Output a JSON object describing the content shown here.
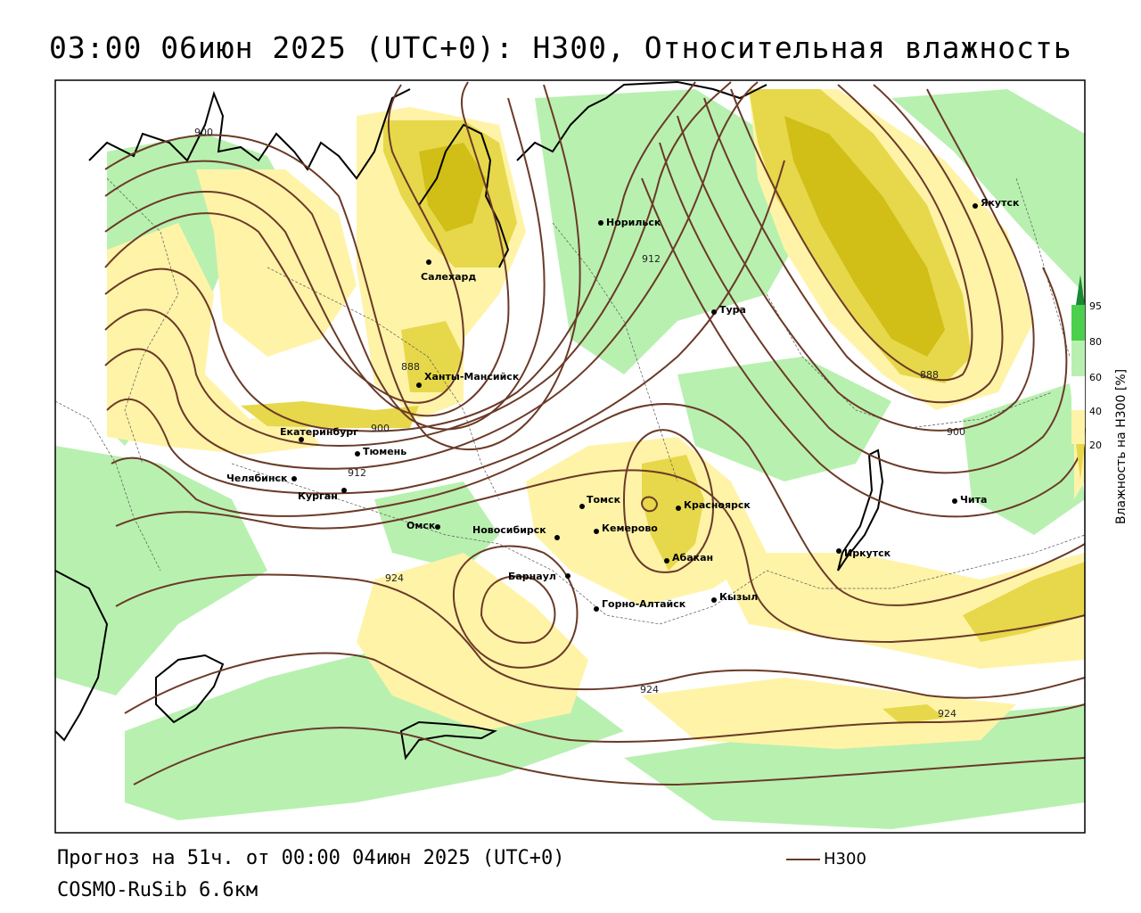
{
  "title": "03:00 06июн 2025 (UTC+0): H300, Относительная влажность",
  "footer": {
    "forecast": "Прогноз на 51ч. от 00:00 04июн 2025 (UTC+0)",
    "model": "COSMO-RuSib 6.6км"
  },
  "legend": {
    "line_label": "H300",
    "line_color": "#6b3a28"
  },
  "colorbar": {
    "title": "Влажность на H300 [%]",
    "ticks": [
      "95",
      "80",
      "60",
      "40",
      "20"
    ],
    "colors": {
      "dark_green": "#1a8a32",
      "green": "#4ccf4c",
      "light_green": "#b8f0b0",
      "white": "#ffffff",
      "light_yellow": "#fff3a8",
      "yellow": "#e6d84a",
      "olive": "#c8b400"
    }
  },
  "cities": [
    {
      "name": "Салехард"
    },
    {
      "name": "Норильск"
    },
    {
      "name": "Якутск"
    },
    {
      "name": "Тура"
    },
    {
      "name": "Ханты-Мансийск"
    },
    {
      "name": "Екатеринбург"
    },
    {
      "name": "Тюмень"
    },
    {
      "name": "Челябинск"
    },
    {
      "name": "Курган"
    },
    {
      "name": "Омск"
    },
    {
      "name": "Новосибирск"
    },
    {
      "name": "Томск"
    },
    {
      "name": "Кемерово"
    },
    {
      "name": "Красноярск"
    },
    {
      "name": "Абакан"
    },
    {
      "name": "Барнаул"
    },
    {
      "name": "Горно-Алтайск"
    },
    {
      "name": "Кызыл"
    },
    {
      "name": "Иркутск"
    },
    {
      "name": "Чита"
    }
  ],
  "contour_labels": [
    "900",
    "888",
    "912",
    "900",
    "912",
    "888",
    "900",
    "924",
    "924",
    "924"
  ]
}
